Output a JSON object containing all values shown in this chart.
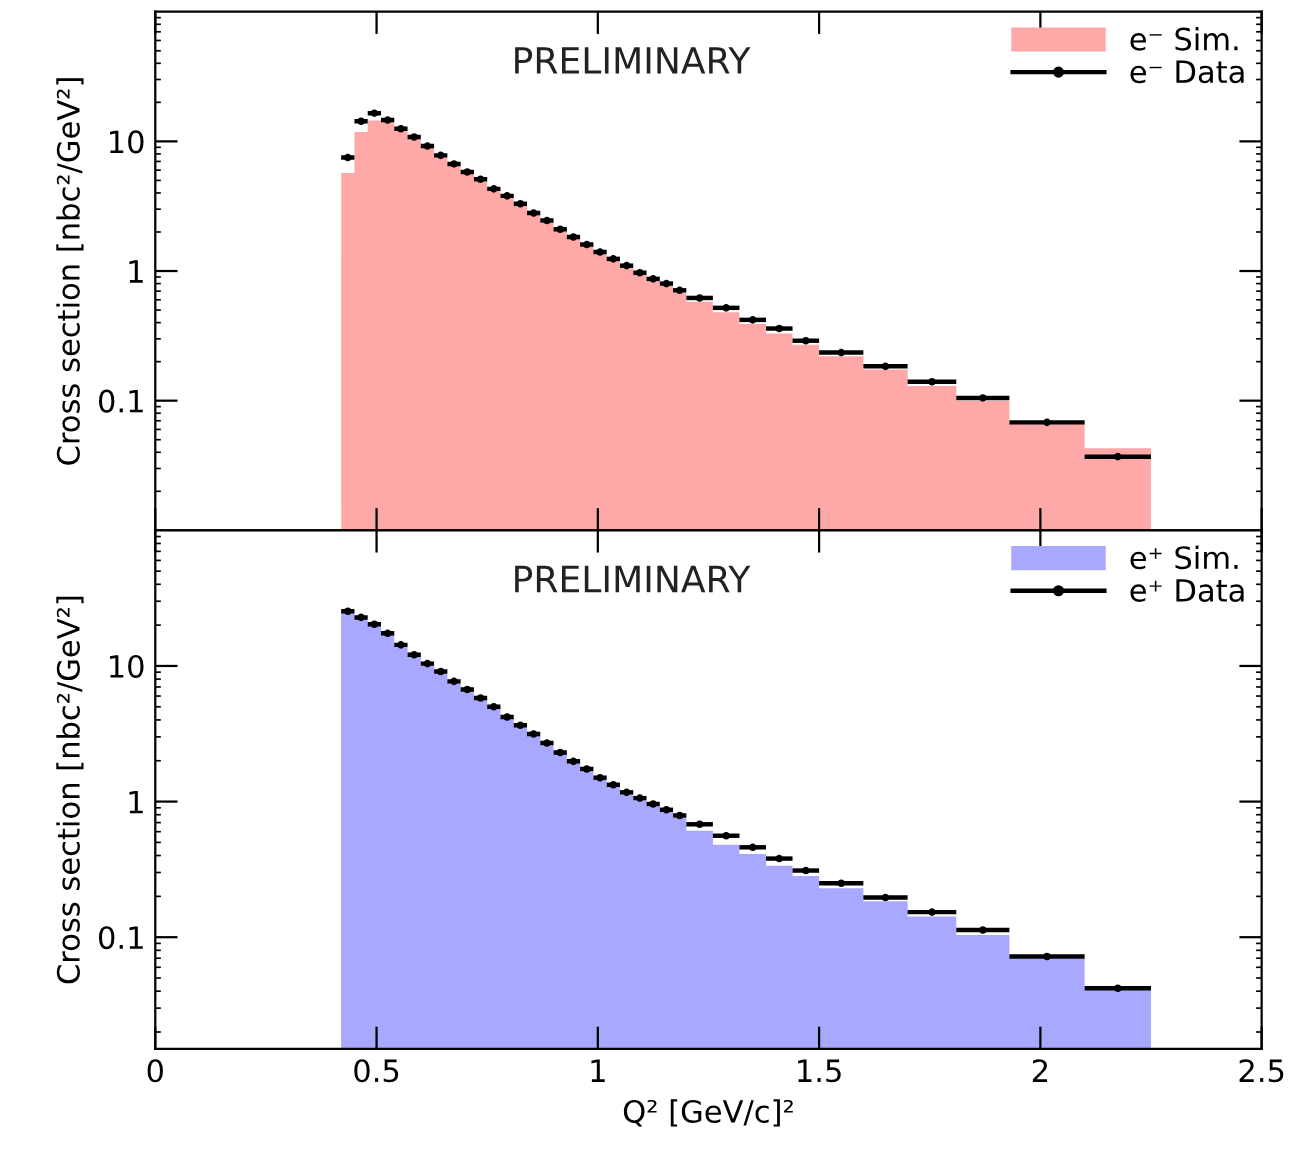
{
  "chart_data": [
    {
      "type": "histogram",
      "ylabel": "Cross section [nbc²/GeV²]",
      "annotations": [
        "PRELIMINARY"
      ],
      "log": "y",
      "legend": "top right",
      "tick_labels": "y",
      "xlim": [
        0,
        2.5
      ],
      "xticks": [
        {
          "value": 0,
          "label": null
        },
        {
          "value": 0.5,
          "label": null
        },
        {
          "value": 1,
          "label": null
        },
        {
          "value": 1.5,
          "label": null
        },
        {
          "value": 2,
          "label": null
        },
        {
          "value": 2.5,
          "label": null
        }
      ],
      "ylim": [
        0.01,
        100
      ],
      "yticks": [
        0.1,
        1,
        10
      ],
      "bins": [
        0.42,
        0.45,
        0.48,
        0.51,
        0.54,
        0.57,
        0.6,
        0.63,
        0.66,
        0.69,
        0.72,
        0.75,
        0.78,
        0.81,
        0.84,
        0.87,
        0.9,
        0.93,
        0.96,
        0.99,
        1.02,
        1.05,
        1.08,
        1.11,
        1.14,
        1.17,
        1.2,
        1.26,
        1.32,
        1.38,
        1.44,
        1.5,
        1.6,
        1.7,
        1.81,
        1.93,
        2.1,
        2.25
      ],
      "series": [
        {
          "name": "e⁻ Sim.",
          "color": "#ffa8a8",
          "values": [
            5.7,
            11.8,
            14.5,
            14.2,
            12.2,
            10.5,
            9.0,
            7.6,
            6.5,
            5.6,
            4.9,
            4.2,
            3.7,
            3.2,
            2.7,
            2.35,
            2.05,
            1.78,
            1.55,
            1.36,
            1.2,
            1.06,
            0.94,
            0.84,
            0.77,
            0.68,
            0.58,
            0.48,
            0.39,
            0.33,
            0.27,
            0.22,
            0.174,
            0.13,
            0.1,
            0.066,
            0.043
          ]
        },
        {
          "name": "e⁻ Data",
          "type": "scatter",
          "color": "#000000",
          "marker": "circle",
          "x": [
            0.435,
            0.465,
            0.495,
            0.525,
            0.555,
            0.585,
            0.615,
            0.645,
            0.675,
            0.705,
            0.735,
            0.765,
            0.795,
            0.825,
            0.855,
            0.885,
            0.915,
            0.945,
            0.975,
            1.005,
            1.035,
            1.065,
            1.095,
            1.125,
            1.155,
            1.185,
            1.23,
            1.29,
            1.35,
            1.41,
            1.47,
            1.55,
            1.65,
            1.755,
            1.87,
            2.015,
            2.175
          ],
          "values": [
            7.5,
            14.3,
            16.5,
            14.6,
            12.5,
            10.8,
            9.2,
            7.8,
            6.7,
            5.8,
            5.1,
            4.3,
            3.8,
            3.3,
            2.8,
            2.45,
            2.1,
            1.83,
            1.6,
            1.4,
            1.24,
            1.1,
            0.97,
            0.87,
            0.8,
            0.71,
            0.62,
            0.52,
            0.42,
            0.36,
            0.29,
            0.235,
            0.184,
            0.14,
            0.105,
            0.068,
            0.037
          ],
          "xerrors": [
            0.015,
            0.015,
            0.015,
            0.015,
            0.015,
            0.015,
            0.015,
            0.015,
            0.015,
            0.015,
            0.015,
            0.015,
            0.015,
            0.015,
            0.015,
            0.015,
            0.015,
            0.015,
            0.015,
            0.015,
            0.015,
            0.015,
            0.015,
            0.015,
            0.015,
            0.015,
            0.03,
            0.03,
            0.03,
            0.03,
            0.03,
            0.05,
            0.05,
            0.055,
            0.06,
            0.085,
            0.075
          ]
        }
      ]
    },
    {
      "type": "histogram",
      "ylabel": "Cross section [nbc²/GeV²]",
      "xlabel": "Q² [GeV/c]²",
      "annotations": [
        "PRELIMINARY"
      ],
      "log": "y",
      "legend": "top right",
      "xlim": [
        0,
        2.5
      ],
      "xticks": [
        0,
        0.5,
        1,
        1.5,
        2,
        2.5
      ],
      "ylim": [
        0.015,
        100
      ],
      "yticks": [
        0.1,
        1,
        10
      ],
      "bins": [
        0.42,
        0.45,
        0.48,
        0.51,
        0.54,
        0.57,
        0.6,
        0.63,
        0.66,
        0.69,
        0.72,
        0.75,
        0.78,
        0.81,
        0.84,
        0.87,
        0.9,
        0.93,
        0.96,
        0.99,
        1.02,
        1.05,
        1.08,
        1.11,
        1.14,
        1.17,
        1.2,
        1.26,
        1.32,
        1.38,
        1.44,
        1.5,
        1.6,
        1.7,
        1.81,
        1.93,
        2.1,
        2.25
      ],
      "series": [
        {
          "name": "e⁺ Sim.",
          "color": "#a8a8ff",
          "values": [
            25,
            22.3,
            19.8,
            17,
            14,
            11.8,
            10.1,
            8.8,
            7.5,
            6.5,
            5.6,
            4.85,
            4.1,
            3.55,
            3.05,
            2.6,
            2.25,
            1.92,
            1.68,
            1.45,
            1.29,
            1.13,
            1.02,
            0.93,
            0.84,
            0.76,
            0.61,
            0.48,
            0.41,
            0.336,
            0.283,
            0.23,
            0.184,
            0.142,
            0.104,
            0.07,
            0.041
          ]
        },
        {
          "name": "e⁺ Data",
          "type": "scatter",
          "color": "#000000",
          "marker": "circle",
          "x": [
            0.435,
            0.465,
            0.495,
            0.525,
            0.555,
            0.585,
            0.615,
            0.645,
            0.675,
            0.705,
            0.735,
            0.765,
            0.795,
            0.825,
            0.855,
            0.885,
            0.915,
            0.945,
            0.975,
            1.005,
            1.035,
            1.065,
            1.095,
            1.125,
            1.155,
            1.185,
            1.23,
            1.29,
            1.35,
            1.41,
            1.47,
            1.55,
            1.65,
            1.755,
            1.87,
            2.015,
            2.175
          ],
          "values": [
            25.3,
            22.8,
            20.3,
            17.4,
            14.3,
            12.1,
            10.4,
            9.1,
            7.7,
            6.7,
            5.8,
            5.0,
            4.2,
            3.65,
            3.15,
            2.7,
            2.3,
            1.98,
            1.74,
            1.5,
            1.33,
            1.17,
            1.06,
            0.96,
            0.87,
            0.79,
            0.68,
            0.56,
            0.46,
            0.38,
            0.31,
            0.25,
            0.196,
            0.153,
            0.113,
            0.072,
            0.042
          ],
          "xerrors": [
            0.015,
            0.015,
            0.015,
            0.015,
            0.015,
            0.015,
            0.015,
            0.015,
            0.015,
            0.015,
            0.015,
            0.015,
            0.015,
            0.015,
            0.015,
            0.015,
            0.015,
            0.015,
            0.015,
            0.015,
            0.015,
            0.015,
            0.015,
            0.015,
            0.015,
            0.015,
            0.03,
            0.03,
            0.03,
            0.03,
            0.03,
            0.05,
            0.05,
            0.055,
            0.06,
            0.085,
            0.075
          ]
        }
      ]
    }
  ]
}
